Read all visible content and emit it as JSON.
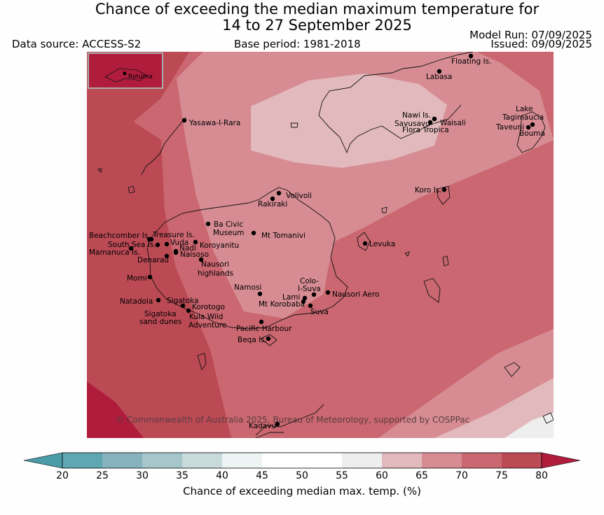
{
  "title_line1": "Chance of exceeding the median maximum temperature for",
  "title_line2": "14 to 27 September 2025",
  "data_source": "Data source: ACCESS-S2",
  "base_period": "Base period: 1981-2018",
  "model_run": "Model Run: 07/09/2025",
  "issued": "Issued: 09/09/2025",
  "copyright": "© Commonwealth of Australia 2025, Bureau of Meteorology, supported by COSPPac",
  "inset_label": "Rotuma",
  "colorbar": {
    "label": "Chance of exceeding median max. temp. (%)",
    "ticks": [
      "20",
      "25",
      "30",
      "35",
      "40",
      "45",
      "50",
      "55",
      "60",
      "65",
      "70",
      "75",
      "80"
    ],
    "colors": [
      "#5fa7b2",
      "#86b3be",
      "#a5c7cb",
      "#c9dadd",
      "#eef3f4",
      "#ffffff",
      "#ffffff",
      "#eeeeee",
      "#e2b9bc",
      "#d78c93",
      "#ca6770",
      "#bb4a55"
    ],
    "under_color": "#4a9ba8",
    "over_color": "#b01c3c"
  },
  "places": [
    {
      "name": "Floating Is."
    },
    {
      "name": "Labasa"
    },
    {
      "name": "Yasawa-I-Rara"
    },
    {
      "name": "Nawi Is."
    },
    {
      "name": "Savusavu"
    },
    {
      "name": "Waisali"
    },
    {
      "name": "Flora Tropica"
    },
    {
      "name": "Lake"
    },
    {
      "name": "Tagimaucia"
    },
    {
      "name": "Taveuni"
    },
    {
      "name": "Bouma"
    },
    {
      "name": "Volivoli"
    },
    {
      "name": "Rakiraki"
    },
    {
      "name": "Koro Is."
    },
    {
      "name": "Ba Civic"
    },
    {
      "name": "Museum"
    },
    {
      "name": "Mt Tomanivi"
    },
    {
      "name": "Beachcomber Is."
    },
    {
      "name": "Treasure Is."
    },
    {
      "name": "Vuda"
    },
    {
      "name": "South Sea Is."
    },
    {
      "name": "Nadi"
    },
    {
      "name": "Koroyanitu"
    },
    {
      "name": "Mamanuca Is."
    },
    {
      "name": "Naisoso"
    },
    {
      "name": "Denarau"
    },
    {
      "name": "Nausori"
    },
    {
      "name": "highlands"
    },
    {
      "name": "Levuka"
    },
    {
      "name": "Momi"
    },
    {
      "name": "Namosi"
    },
    {
      "name": "Colo-"
    },
    {
      "name": "I-Suva"
    },
    {
      "name": "Lami"
    },
    {
      "name": "Nausori Aero"
    },
    {
      "name": "Natadola"
    },
    {
      "name": "Sigatoka"
    },
    {
      "name": "Mt Korobaba"
    },
    {
      "name": "Korotogo"
    },
    {
      "name": "Suva"
    },
    {
      "name": "Sigatoka"
    },
    {
      "name": "sand dunes"
    },
    {
      "name": "Kula Wild"
    },
    {
      "name": "Adventure"
    },
    {
      "name": "Pacific Harbour"
    },
    {
      "name": "Beqa Is."
    },
    {
      "name": "Kadavu"
    }
  ]
}
